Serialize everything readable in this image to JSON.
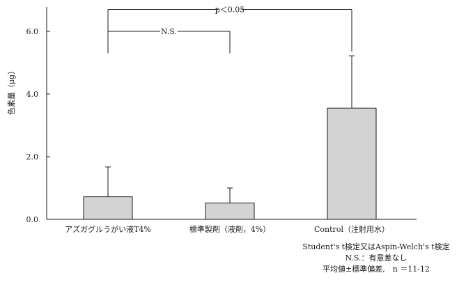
{
  "chart_data": {
    "type": "bar",
    "ylabel": "色素量（μg）",
    "ylim": [
      0,
      7.5
    ],
    "yticks": [
      {
        "value": 0,
        "label": "0.0"
      },
      {
        "value": 2,
        "label": "2.0"
      },
      {
        "value": 4,
        "label": "4.0"
      },
      {
        "value": 6,
        "label": "6.0"
      }
    ],
    "categories": [
      "アズガグルうがい液T4%",
      "標準製剤（液剤，4%）",
      "Control（注射用水）"
    ],
    "values": [
      0.72,
      0.52,
      3.55
    ],
    "errors": [
      0.95,
      0.48,
      1.67
    ],
    "grid": false,
    "colors": {
      "bar_fill": "#d3d3d3",
      "stroke": "#1a1a1a"
    },
    "significance": [
      {
        "from": 0,
        "to": 2,
        "label": "p＜0.05"
      },
      {
        "from": 0,
        "to": 1,
        "label": "N.S."
      }
    ],
    "notes": [
      "Student's t検定又はAspin-Welch's t検定",
      "N.S.：有意差なし",
      "平均値±標準偏差,　n ＝11-12"
    ]
  }
}
